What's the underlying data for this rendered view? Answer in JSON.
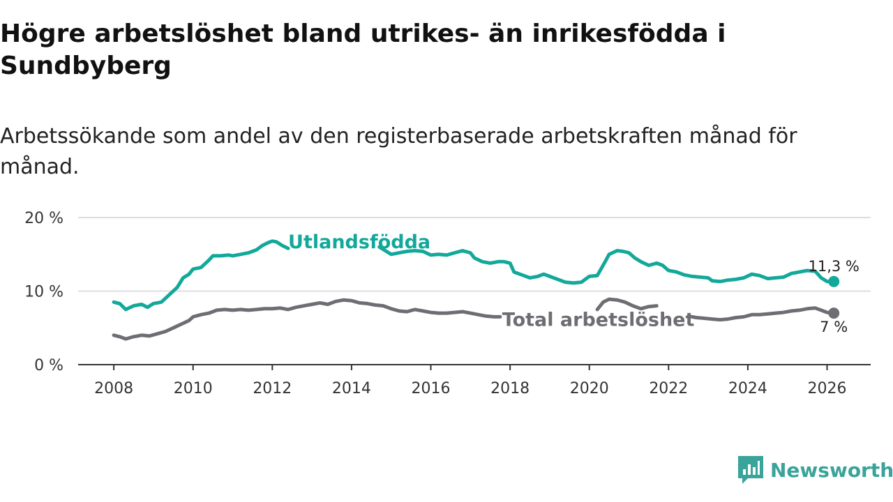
{
  "header": {
    "title": "Högre arbetslöshet bland utrikes- än inrikesfödda i Sundbyberg",
    "subtitle": "Arbetssökande som andel av den registerbaserade arbetskraften månad för månad."
  },
  "brand": {
    "name": "Newsworthy"
  },
  "colors": {
    "foreign": "#12a89a",
    "total": "#6e6d73",
    "grid": "#dddddd",
    "axis": "#333333",
    "brand": "#3aa39a"
  },
  "chart_data": {
    "type": "line",
    "title": "Högre arbetslöshet bland utrikes- än inrikesfödda i Sundbyberg",
    "subtitle": "Arbetssökande som andel av den registerbaserade arbetskraften månad för månad.",
    "xlabel": "",
    "ylabel": "",
    "xlim": [
      2007.1,
      2027.1
    ],
    "ylim": [
      0,
      20
    ],
    "x_ticks": [
      2008,
      2010,
      2012,
      2014,
      2016,
      2018,
      2020,
      2022,
      2024,
      2026
    ],
    "x_tick_labels": [
      "2008",
      "2010",
      "2012",
      "2014",
      "2016",
      "2018",
      "2020",
      "2022",
      "2024",
      "2026"
    ],
    "y_ticks": [
      0,
      10,
      20
    ],
    "y_tick_labels": [
      "0 %",
      "10 %",
      "20 %"
    ],
    "grid": true,
    "series": [
      {
        "name": "Utlandsfödda",
        "end_label": "11,3 %",
        "points": [
          [
            2008.0,
            8.5
          ],
          [
            2008.15,
            8.3
          ],
          [
            2008.3,
            7.5
          ],
          [
            2008.5,
            8.0
          ],
          [
            2008.7,
            8.2
          ],
          [
            2008.85,
            7.8
          ],
          [
            2009.0,
            8.3
          ],
          [
            2009.2,
            8.5
          ],
          [
            2009.4,
            9.5
          ],
          [
            2009.6,
            10.5
          ],
          [
            2009.75,
            11.8
          ],
          [
            2009.9,
            12.3
          ],
          [
            2010.0,
            13.0
          ],
          [
            2010.2,
            13.2
          ],
          [
            2010.4,
            14.2
          ],
          [
            2010.5,
            14.8
          ],
          [
            2010.7,
            14.8
          ],
          [
            2010.9,
            14.9
          ],
          [
            2011.0,
            14.8
          ],
          [
            2011.2,
            15.0
          ],
          [
            2011.4,
            15.2
          ],
          [
            2011.6,
            15.6
          ],
          [
            2011.75,
            16.2
          ],
          [
            2011.9,
            16.6
          ],
          [
            2012.0,
            16.8
          ],
          [
            2012.1,
            16.7
          ],
          [
            2012.25,
            16.2
          ],
          [
            2012.4,
            15.8
          ],
          [
            2014.7,
            16.0
          ],
          [
            2014.85,
            15.5
          ],
          [
            2015.0,
            15.0
          ],
          [
            2015.2,
            15.2
          ],
          [
            2015.4,
            15.4
          ],
          [
            2015.6,
            15.5
          ],
          [
            2015.8,
            15.4
          ],
          [
            2016.0,
            14.9
          ],
          [
            2016.2,
            15.0
          ],
          [
            2016.4,
            14.9
          ],
          [
            2016.6,
            15.2
          ],
          [
            2016.8,
            15.5
          ],
          [
            2017.0,
            15.2
          ],
          [
            2017.1,
            14.5
          ],
          [
            2017.3,
            14.0
          ],
          [
            2017.5,
            13.8
          ],
          [
            2017.7,
            14.0
          ],
          [
            2017.85,
            14.0
          ],
          [
            2018.0,
            13.8
          ],
          [
            2018.1,
            12.6
          ],
          [
            2018.3,
            12.2
          ],
          [
            2018.5,
            11.8
          ],
          [
            2018.7,
            12.0
          ],
          [
            2018.85,
            12.3
          ],
          [
            2019.0,
            12.0
          ],
          [
            2019.2,
            11.6
          ],
          [
            2019.4,
            11.2
          ],
          [
            2019.6,
            11.1
          ],
          [
            2019.8,
            11.2
          ],
          [
            2020.0,
            12.0
          ],
          [
            2020.2,
            12.1
          ],
          [
            2020.4,
            14.0
          ],
          [
            2020.5,
            15.0
          ],
          [
            2020.7,
            15.5
          ],
          [
            2020.85,
            15.4
          ],
          [
            2021.0,
            15.2
          ],
          [
            2021.15,
            14.5
          ],
          [
            2021.3,
            14.0
          ],
          [
            2021.5,
            13.5
          ],
          [
            2021.7,
            13.8
          ],
          [
            2021.85,
            13.5
          ],
          [
            2022.0,
            12.8
          ],
          [
            2022.2,
            12.6
          ],
          [
            2022.4,
            12.2
          ],
          [
            2022.6,
            12.0
          ],
          [
            2022.8,
            11.9
          ],
          [
            2023.0,
            11.8
          ],
          [
            2023.1,
            11.4
          ],
          [
            2023.3,
            11.3
          ],
          [
            2023.5,
            11.5
          ],
          [
            2023.7,
            11.6
          ],
          [
            2023.9,
            11.8
          ],
          [
            2024.1,
            12.3
          ],
          [
            2024.3,
            12.1
          ],
          [
            2024.5,
            11.7
          ],
          [
            2024.7,
            11.8
          ],
          [
            2024.9,
            11.9
          ],
          [
            2025.1,
            12.4
          ],
          [
            2025.3,
            12.6
          ],
          [
            2025.5,
            12.8
          ],
          [
            2025.7,
            12.7
          ],
          [
            2025.85,
            11.8
          ],
          [
            2026.0,
            11.3
          ],
          [
            2026.17,
            11.3
          ]
        ]
      },
      {
        "name": "Total arbetslöshet",
        "end_label": "7 %",
        "points": [
          [
            2008.0,
            4.0
          ],
          [
            2008.15,
            3.8
          ],
          [
            2008.3,
            3.5
          ],
          [
            2008.5,
            3.8
          ],
          [
            2008.7,
            4.0
          ],
          [
            2008.9,
            3.9
          ],
          [
            2009.1,
            4.2
          ],
          [
            2009.3,
            4.5
          ],
          [
            2009.5,
            5.0
          ],
          [
            2009.7,
            5.5
          ],
          [
            2009.9,
            6.0
          ],
          [
            2010.0,
            6.5
          ],
          [
            2010.2,
            6.8
          ],
          [
            2010.4,
            7.0
          ],
          [
            2010.6,
            7.4
          ],
          [
            2010.8,
            7.5
          ],
          [
            2011.0,
            7.4
          ],
          [
            2011.2,
            7.5
          ],
          [
            2011.4,
            7.4
          ],
          [
            2011.6,
            7.5
          ],
          [
            2011.8,
            7.6
          ],
          [
            2012.0,
            7.6
          ],
          [
            2012.2,
            7.7
          ],
          [
            2012.4,
            7.5
          ],
          [
            2012.6,
            7.8
          ],
          [
            2012.8,
            8.0
          ],
          [
            2013.0,
            8.2
          ],
          [
            2013.2,
            8.4
          ],
          [
            2013.4,
            8.2
          ],
          [
            2013.6,
            8.6
          ],
          [
            2013.8,
            8.8
          ],
          [
            2014.0,
            8.7
          ],
          [
            2014.2,
            8.4
          ],
          [
            2014.4,
            8.3
          ],
          [
            2014.6,
            8.1
          ],
          [
            2014.8,
            8.0
          ],
          [
            2015.0,
            7.6
          ],
          [
            2015.2,
            7.3
          ],
          [
            2015.4,
            7.2
          ],
          [
            2015.6,
            7.5
          ],
          [
            2015.8,
            7.3
          ],
          [
            2016.0,
            7.1
          ],
          [
            2016.2,
            7.0
          ],
          [
            2016.4,
            7.0
          ],
          [
            2016.6,
            7.1
          ],
          [
            2016.8,
            7.2
          ],
          [
            2017.0,
            7.0
          ],
          [
            2017.2,
            6.8
          ],
          [
            2017.4,
            6.6
          ],
          [
            2017.6,
            6.5
          ],
          [
            2017.75,
            6.5
          ]
        ],
        "points_2": [
          [
            2020.2,
            7.5
          ],
          [
            2020.35,
            8.5
          ],
          [
            2020.5,
            8.9
          ],
          [
            2020.7,
            8.8
          ],
          [
            2020.9,
            8.5
          ],
          [
            2021.1,
            8.0
          ],
          [
            2021.3,
            7.6
          ],
          [
            2021.5,
            7.9
          ],
          [
            2021.7,
            8.0
          ]
        ],
        "points_3": [
          [
            2022.5,
            6.6
          ],
          [
            2022.7,
            6.4
          ],
          [
            2022.9,
            6.3
          ],
          [
            2023.1,
            6.2
          ],
          [
            2023.3,
            6.1
          ],
          [
            2023.5,
            6.2
          ],
          [
            2023.7,
            6.4
          ],
          [
            2023.9,
            6.5
          ],
          [
            2024.1,
            6.8
          ],
          [
            2024.3,
            6.8
          ],
          [
            2024.5,
            6.9
          ],
          [
            2024.7,
            7.0
          ],
          [
            2024.9,
            7.1
          ],
          [
            2025.1,
            7.3
          ],
          [
            2025.3,
            7.4
          ],
          [
            2025.5,
            7.6
          ],
          [
            2025.7,
            7.7
          ],
          [
            2025.85,
            7.4
          ],
          [
            2026.0,
            7.1
          ],
          [
            2026.17,
            7.0
          ]
        ]
      }
    ],
    "annotations": [
      {
        "text": "Utlandsfödda",
        "x": 2012.4,
        "y": 16.6,
        "series": "Utlandsfödda"
      },
      {
        "text": "Total arbetslöshet",
        "x": 2017.8,
        "y": 6.0,
        "series": "Total arbetslöshet"
      }
    ]
  }
}
